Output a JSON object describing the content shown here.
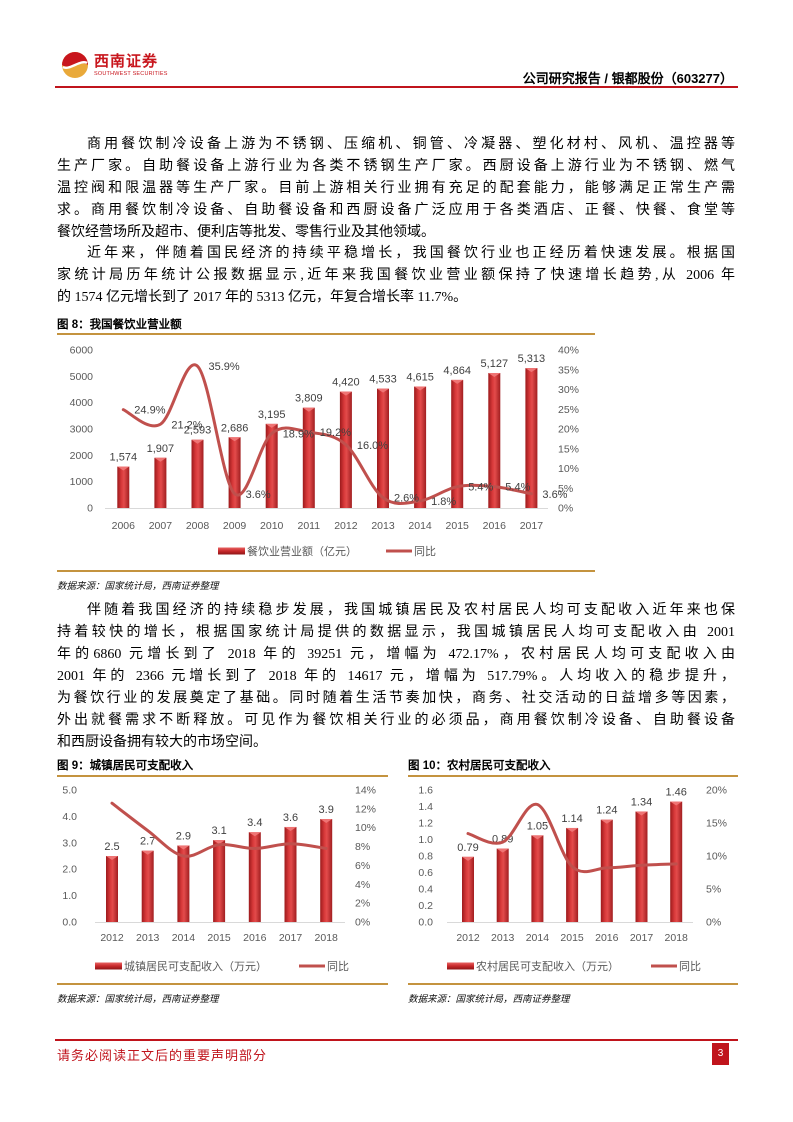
{
  "header": {
    "logo": {
      "cn": "西南证券",
      "en": "SOUTHWEST SECURITIES",
      "icon": "southwest-securities-logo-icon"
    },
    "report_title": "公司研究报告 / 银都股份（603277）"
  },
  "body": {
    "p1": {
      "lines": [
        "商用餐饮制冷设备上游为不锈钢、压缩机、铜管、冷凝器、塑化材村、风机、温控器等",
        "生产厂家。自助餐设备上游行业为各类不锈钢生产厂家。西厨设备上游行业为不锈钢、燃气",
        "温控阀和限温器等生产厂家。目前上游相关行业拥有充足的配套能力，能够满足正常生产需",
        "求。商用餐饮制冷设备、自助餐设备和西厨设备广泛应用于各类酒店、正餐、快餐、食堂等",
        "餐饮经营场所及超市、便利店等批发、零售行业及其他领域。"
      ]
    },
    "p2": {
      "lines": [
        "近年来，伴随着国民经济的持续平稳增长，我国餐饮行业也正经历着快速发展。根据国",
        "家统计局历年统计公报数据显示,近年来我国餐饮业营业额保持了快速增长趋势,从 2006 年",
        "的 1574 亿元增长到了 2017 年的 5313 亿元，年复合增长率 11.7%。"
      ]
    },
    "p3": {
      "lines": [
        "伴随着我国经济的持续稳步发展，我国城镇居民及农村居民人均可支配收入近年来也保",
        "持着较快的增长，根据国家统计局提供的数据显示，我国城镇居民人均可支配收入由 2001",
        "年的6860 元增长到了 2018  年的 39251 元，增幅为 472.17%，农村居民人均可支配收入由",
        "2001 年的 2366 元增长到了 2018 年的 14617 元，增幅为 517.79%。人均收入的稳步提升，",
        "为餐饮行业的发展奠定了基础。同时随着生活节奏加快，商务、社交活动的日益增多等因素，",
        "外出就餐需求不断释放。可见作为餐饮相关行业的必须品，商用餐饮制冷设备、自助餐设备",
        "和西厨设备拥有较大的市场空间。"
      ]
    }
  },
  "figures": {
    "fig8": {
      "title": "图 8：我国餐饮业营业额",
      "source": "数据来源：国家统计局，西南证券整理"
    },
    "fig9": {
      "title": "图 9：城镇居民可支配收入",
      "source": "数据来源：国家统计局，西南证券整理"
    },
    "fig10": {
      "title": "图 10：农村居民可支配收入",
      "source": "数据来源：国家统计局，西南证券整理"
    }
  },
  "footer": {
    "disclaimer": "请务必阅读正文后的重要声明部分",
    "page_number": "3"
  },
  "colors": {
    "brand_red": "#c0141c",
    "rule_gold": "#c4933f",
    "bar_red": "#d8393a",
    "line_red": "#c0504d"
  },
  "chart_data": [
    {
      "type": "bar+line",
      "title": "图 8：我国餐饮业营业额",
      "categories": [
        "2006",
        "2007",
        "2008",
        "2009",
        "2010",
        "2011",
        "2012",
        "2013",
        "2014",
        "2015",
        "2016",
        "2017"
      ],
      "series": [
        {
          "name": "餐饮业营业额（亿元）",
          "type": "bar",
          "axis": "left",
          "values": [
            1574,
            1907,
            2593,
            2686,
            3195,
            3809,
            4420,
            4533,
            4615,
            4864,
            5127,
            5313
          ],
          "labels": [
            "1,574",
            "1,907",
            "2,593",
            "2,686",
            "3,195",
            "3,809",
            "4,420",
            "4,533",
            "4,615",
            "4,864",
            "5,127",
            "5,313"
          ]
        },
        {
          "name": "同比",
          "type": "line",
          "axis": "right",
          "values": [
            24.9,
            21.2,
            35.9,
            3.6,
            18.9,
            19.2,
            16.0,
            2.6,
            1.8,
            5.4,
            5.4,
            3.6
          ],
          "labels": [
            "24.9%",
            "21.2%",
            "35.9%",
            "3.6%",
            "18.9%",
            "19.2%",
            "16.0%",
            "2.6%",
            "1.8%",
            "5.4%",
            "5.4%",
            "3.6%"
          ]
        }
      ],
      "y_left": {
        "min": 0,
        "max": 6000,
        "ticks": [
          "0",
          "1000",
          "2000",
          "3000",
          "4000",
          "5000",
          "6000"
        ]
      },
      "y_right": {
        "min": 0,
        "max": 40,
        "ticks": [
          "0%",
          "5%",
          "10%",
          "15%",
          "20%",
          "25%",
          "30%",
          "35%",
          "40%"
        ]
      },
      "legend_position": "bottom",
      "grid": false,
      "colors": {
        "bar": "#d8393a",
        "line": "#c0504d"
      }
    },
    {
      "type": "bar+line",
      "title": "图 9：城镇居民可支配收入",
      "categories": [
        "2012",
        "2013",
        "2014",
        "2015",
        "2016",
        "2017",
        "2018"
      ],
      "series": [
        {
          "name": "城镇居民可支配收入（万元）",
          "type": "bar",
          "axis": "left",
          "values": [
            2.5,
            2.7,
            2.9,
            3.1,
            3.4,
            3.6,
            3.9
          ],
          "labels": [
            "2.5",
            "2.7",
            "2.9",
            "3.1",
            "3.4",
            "3.6",
            "3.9"
          ]
        },
        {
          "name": "同比",
          "type": "line",
          "axis": "right",
          "values": [
            12.6,
            9.7,
            7.0,
            8.2,
            7.8,
            8.3,
            7.8
          ]
        }
      ],
      "y_left": {
        "min": 0,
        "max": 5,
        "ticks": [
          "0.0",
          "1.0",
          "2.0",
          "3.0",
          "4.0",
          "5.0"
        ]
      },
      "y_right": {
        "min": 0,
        "max": 14,
        "ticks": [
          "0%",
          "2%",
          "4%",
          "6%",
          "8%",
          "10%",
          "12%",
          "14%"
        ]
      },
      "legend_position": "bottom",
      "grid": false,
      "colors": {
        "bar": "#d8393a",
        "line": "#c0504d"
      }
    },
    {
      "type": "bar+line",
      "title": "图 10：农村居民可支配收入",
      "categories": [
        "2012",
        "2013",
        "2014",
        "2015",
        "2016",
        "2017",
        "2018"
      ],
      "series": [
        {
          "name": "农村居民可支配收入（万元）",
          "type": "bar",
          "axis": "left",
          "values": [
            0.79,
            0.89,
            1.05,
            1.14,
            1.24,
            1.34,
            1.46
          ],
          "labels": [
            "0.79",
            "0.89",
            "1.05",
            "1.14",
            "1.24",
            "1.34",
            "1.46"
          ]
        },
        {
          "name": "同比",
          "type": "line",
          "axis": "right",
          "values": [
            13.4,
            12.1,
            17.8,
            8.4,
            8.2,
            8.6,
            8.8
          ]
        }
      ],
      "y_left": {
        "min": 0,
        "max": 1.6,
        "ticks": [
          "0.0",
          "0.2",
          "0.4",
          "0.6",
          "0.8",
          "1.0",
          "1.2",
          "1.4",
          "1.6"
        ]
      },
      "y_right": {
        "min": 0,
        "max": 20,
        "ticks": [
          "0%",
          "5%",
          "10%",
          "15%",
          "20%"
        ]
      },
      "legend_position": "bottom",
      "grid": false,
      "colors": {
        "bar": "#d8393a",
        "line": "#c0504d"
      }
    }
  ]
}
